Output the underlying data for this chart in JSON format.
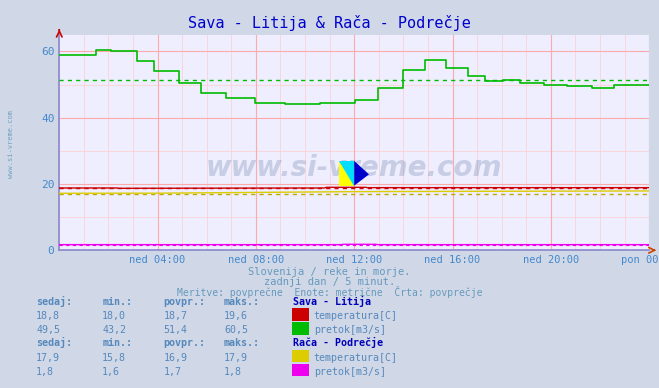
{
  "title": "Sava - Litija & Rača - Podrečje",
  "title_color": "#0000cc",
  "bg_color": "#d0d8e8",
  "plot_bg_color": "#eeeeff",
  "grid_color_major": "#ffaaaa",
  "grid_color_minor": "#ffcccc",
  "xlabel_color": "#4488cc",
  "text_color": "#6699bb",
  "subtitle1": "Slovenija / reke in morje.",
  "subtitle2": "zadnji dan / 5 minut.",
  "subtitle3": "Meritve: povprečne  Enote: metrične  Črta: povprečje",
  "xtick_labels": [
    "ned 04:00",
    "ned 08:00",
    "ned 12:00",
    "ned 16:00",
    "ned 20:00",
    "pon 00:00"
  ],
  "ytick_labels": [
    "0",
    "20",
    "40",
    "60"
  ],
  "ytick_positions": [
    0,
    20,
    40,
    60
  ],
  "ymin": 0,
  "ymax": 65,
  "watermark": "www.si-vreme.com",
  "watermark_color": "#1a3a6a",
  "watermark_alpha": 0.18,
  "sava_temp_color": "#cc0000",
  "sava_pretok_color": "#00bb00",
  "raca_temp_color": "#ddcc00",
  "raca_pretok_color": "#ee00ee",
  "avg_sava_temp": 18.7,
  "avg_sava_pretok": 51.4,
  "avg_raca_temp": 16.9,
  "avg_raca_pretok": 1.7,
  "table_header": [
    "sedaj:",
    "min.:",
    "povpr.:",
    "maks.:"
  ],
  "sava_label": "Sava - Litija",
  "sava_temp_row": [
    "18,8",
    "18,0",
    "18,7",
    "19,6"
  ],
  "sava_pretok_row": [
    "49,5",
    "43,2",
    "51,4",
    "60,5"
  ],
  "raca_label": "Rača - Podrečje",
  "raca_temp_row": [
    "17,9",
    "15,8",
    "16,9",
    "17,9"
  ],
  "raca_pretok_row": [
    "1,8",
    "1,6",
    "1,7",
    "1,8"
  ],
  "temp_label": "temperatura[C]",
  "pretok_label": "pretok[m3/s]",
  "left_label_color": "#6699bb",
  "n_points": 288
}
